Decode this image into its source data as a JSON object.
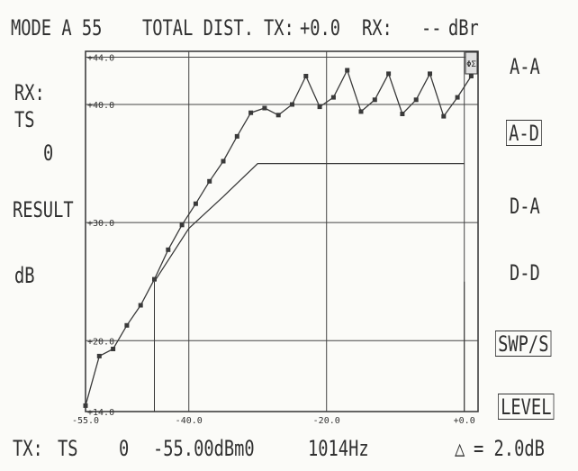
{
  "header": {
    "mode": "MODE A 55",
    "measurement": "TOTAL DIST.",
    "tx_label": "TX:",
    "tx_value": "+0.0",
    "rx_label": "RX:",
    "rx_value": "--",
    "unit": "dBr"
  },
  "left_panel": {
    "rx_label": "RX:",
    "ts_label": "TS",
    "ts_value": "0",
    "result_label": "RESULT",
    "result_unit": "dB"
  },
  "right_menu": {
    "items": [
      {
        "label": "A-A",
        "selected": false
      },
      {
        "label": "A-D",
        "selected": true
      },
      {
        "label": "D-A",
        "selected": false
      },
      {
        "label": "D-D",
        "selected": false
      },
      {
        "label": "SWP/S",
        "selected": true
      },
      {
        "label": "LEVEL",
        "selected": true
      }
    ]
  },
  "chart_badge": "ΦΣ",
  "footer": {
    "tx_label": "TX:",
    "ts_label": "TS",
    "ts_value": "0",
    "level": "-55.00dBm0",
    "frequency": "1014Hz",
    "delta_symbol": "△",
    "delta_value": "= 2.0dB"
  },
  "chart_data": {
    "type": "line",
    "xlim": [
      -55,
      2
    ],
    "ylim": [
      14,
      44.5
    ],
    "x_ticks": [
      "-55.0",
      "-40.0",
      "-20.0",
      "+0.0"
    ],
    "x_tick_values": [
      -55,
      -40,
      -20,
      0
    ],
    "y_ticks": [
      "+44.0",
      "+40.0",
      "+30.0",
      "+20.0",
      "+14.0"
    ],
    "y_tick_values": [
      44,
      40,
      30,
      20,
      14
    ],
    "grid": true,
    "vertical_markers": [
      -45,
      0
    ],
    "series": [
      {
        "style": "markers",
        "x": [
          -55,
          -53,
          -51,
          -49,
          -47,
          -45,
          -43,
          -41,
          -39,
          -37,
          -35,
          -33,
          -31,
          -29,
          -27,
          -25,
          -23,
          -21,
          -19,
          -17,
          -15,
          -13,
          -11,
          -9,
          -7,
          -5,
          -3,
          -1,
          1
        ],
        "y": [
          14.5,
          18.7,
          19.3,
          21.3,
          23.0,
          25.2,
          27.7,
          29.8,
          31.6,
          33.5,
          35.2,
          37.3,
          39.3,
          39.7,
          39.1,
          40.0,
          42.4,
          39.8,
          40.6,
          42.9,
          39.4,
          40.4,
          42.6,
          39.2,
          40.4,
          42.6,
          39.0,
          40.6,
          42.4
        ]
      },
      {
        "style": "line",
        "x": [
          -45,
          -40,
          -35,
          -30,
          0
        ],
        "y": [
          25.0,
          29.5,
          32.2,
          35.0,
          35.0
        ]
      }
    ]
  }
}
